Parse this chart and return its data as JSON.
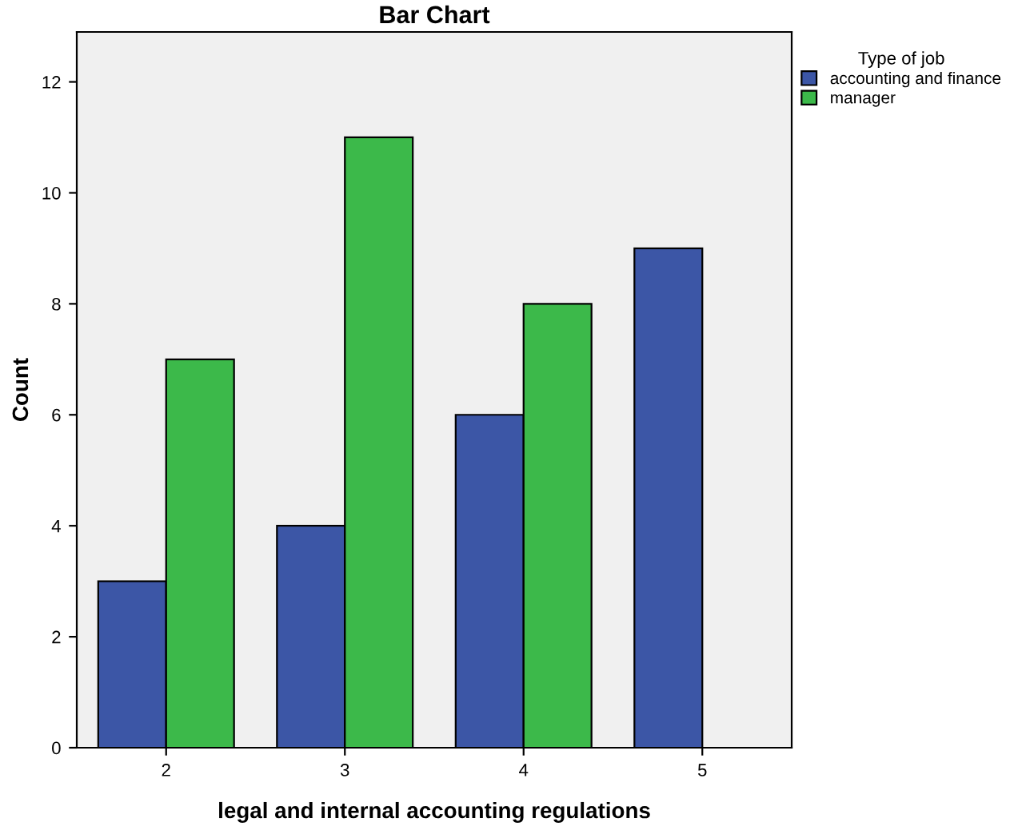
{
  "chart_data": {
    "type": "bar",
    "title": "Bar Chart",
    "xlabel": "legal and internal accounting regulations",
    "ylabel": "Count",
    "legend_title": "Type of job",
    "categories": [
      "2",
      "3",
      "4",
      "5"
    ],
    "series": [
      {
        "name": "accounting and finance",
        "color": "#3c56a6",
        "values": [
          3,
          4,
          6,
          9
        ]
      },
      {
        "name": "manager",
        "color": "#3cb94a",
        "values": [
          7,
          11,
          8,
          null
        ]
      }
    ],
    "ylim": [
      0,
      12.9
    ],
    "yticks": [
      0,
      2,
      4,
      6,
      8,
      10,
      12
    ],
    "grid": false,
    "legend": "top right"
  }
}
